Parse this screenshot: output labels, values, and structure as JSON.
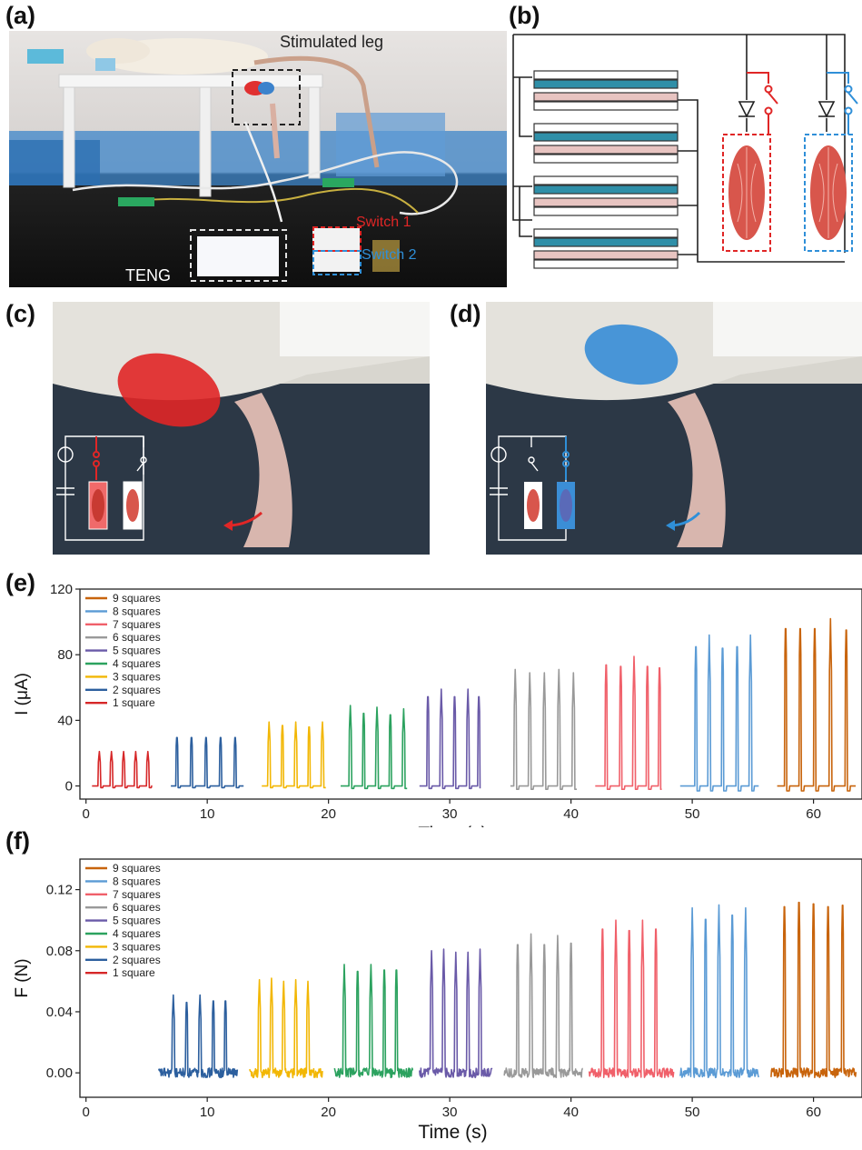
{
  "panels": {
    "a": {
      "label": "(a)",
      "stimulated_leg": "Stimulated leg",
      "switch1": "Switch 1",
      "switch2": "Switch 2",
      "teng": "TENG"
    },
    "b": {
      "label": "(b)"
    },
    "c": {
      "label": "(c)"
    },
    "d": {
      "label": "(d)"
    },
    "e": {
      "label": "(e)"
    },
    "f": {
      "label": "(f)"
    }
  },
  "colors": {
    "red_switch": "#e02626",
    "blue_switch": "#2f8fd8",
    "teng_dark": "#2f8fa8",
    "teng_light": "#e8c4c1",
    "muscle": "#d8564c"
  },
  "chart_data": [
    {
      "type": "line",
      "panel": "(e)",
      "xlabel": "Time (s)",
      "ylabel": "I (μA)",
      "xlim": [
        -0.5,
        64
      ],
      "ylim": [
        -8,
        120
      ],
      "xticks": [
        0,
        10,
        20,
        30,
        40,
        50,
        60
      ],
      "yticks": [
        0,
        40,
        80,
        120
      ],
      "legend_position": "top-left",
      "series": [
        {
          "name": "1 square",
          "color": "#d62728",
          "x_start": 0.5,
          "x_end": 5.5,
          "peaks_x": [
            1.1,
            2.1,
            3.1,
            4.1,
            5.1
          ],
          "peaks_y": [
            21,
            21,
            21,
            21,
            21
          ],
          "dip": -1
        },
        {
          "name": "2 squares",
          "color": "#2c5f9e",
          "x_start": 7.0,
          "x_end": 13.0,
          "peaks_x": [
            7.5,
            8.7,
            9.9,
            11.1,
            12.3
          ],
          "peaks_y": [
            32,
            32,
            32,
            32,
            32
          ],
          "dip": -1
        },
        {
          "name": "3 squares",
          "color": "#f2b705",
          "x_start": 14.5,
          "x_end": 19.8,
          "peaks_x": [
            15.1,
            16.2,
            17.3,
            18.4,
            19.5
          ],
          "peaks_y": [
            39,
            40,
            39,
            39,
            39
          ],
          "dip": -1
        },
        {
          "name": "4 squares",
          "color": "#2ca25f",
          "x_start": 21.0,
          "x_end": 26.5,
          "peaks_x": [
            21.8,
            22.9,
            24.0,
            25.1,
            26.2
          ],
          "peaks_y": [
            49,
            48,
            48,
            47,
            47
          ],
          "dip": -1.5
        },
        {
          "name": "5 squares",
          "color": "#6a5aa8",
          "x_start": 27.5,
          "x_end": 32.5,
          "peaks_x": [
            28.2,
            29.3,
            30.4,
            31.5,
            32.4
          ],
          "peaks_y": [
            59,
            59,
            59,
            59,
            59
          ],
          "dip": -1.5
        },
        {
          "name": "6 squares",
          "color": "#999999",
          "x_start": 35.0,
          "x_end": 40.5,
          "peaks_x": [
            35.4,
            36.6,
            37.8,
            39.0,
            40.2
          ],
          "peaks_y": [
            71,
            69,
            69,
            71,
            69
          ],
          "dip": -2
        },
        {
          "name": "7 squares",
          "color": "#f0606a",
          "x_start": 42.0,
          "x_end": 47.5,
          "peaks_x": [
            42.9,
            44.1,
            45.2,
            46.3,
            47.3
          ],
          "peaks_y": [
            80,
            79,
            79,
            79,
            78
          ],
          "dip": -2
        },
        {
          "name": "8 squares",
          "color": "#5b9bd5",
          "x_start": 49.0,
          "x_end": 55.5,
          "peaks_x": [
            50.3,
            51.4,
            52.5,
            53.7,
            54.8
          ],
          "peaks_y": [
            92,
            92,
            91,
            92,
            92
          ],
          "dip": -3
        },
        {
          "name": "9 squares",
          "color": "#c8640c",
          "x_start": 57.0,
          "x_end": 63.5,
          "peaks_x": [
            57.7,
            58.9,
            60.1,
            61.4,
            62.7
          ],
          "peaks_y": [
            104,
            104,
            104,
            102,
            103
          ],
          "dip": -3
        }
      ]
    },
    {
      "type": "line",
      "panel": "(f)",
      "xlabel": "Time (s)",
      "ylabel": "F (N)",
      "xlim": [
        -0.5,
        64
      ],
      "ylim": [
        -0.016,
        0.14
      ],
      "xticks": [
        0,
        10,
        20,
        30,
        40,
        50,
        60
      ],
      "yticks": [
        0.0,
        0.04,
        0.08,
        0.12
      ],
      "legend_position": "top-left",
      "series": [
        {
          "name": "1 square",
          "color": "#d62728",
          "x_start": null,
          "x_end": null,
          "peaks_x": [],
          "peaks_y": []
        },
        {
          "name": "2 squares",
          "color": "#2c5f9e",
          "x_start": 6.0,
          "x_end": 12.5,
          "peaks_x": [
            7.2,
            8.3,
            9.4,
            10.5,
            11.5
          ],
          "peaks_y": [
            0.051,
            0.05,
            0.051,
            0.051,
            0.051
          ]
        },
        {
          "name": "3 squares",
          "color": "#f2b705",
          "x_start": 13.5,
          "x_end": 19.5,
          "peaks_x": [
            14.3,
            15.3,
            16.3,
            17.3,
            18.3
          ],
          "peaks_y": [
            0.061,
            0.062,
            0.06,
            0.061,
            0.06
          ]
        },
        {
          "name": "4 squares",
          "color": "#2ca25f",
          "x_start": 20.5,
          "x_end": 27.0,
          "peaks_x": [
            21.3,
            22.4,
            23.5,
            24.6,
            25.6
          ],
          "peaks_y": [
            0.071,
            0.072,
            0.071,
            0.073,
            0.073
          ]
        },
        {
          "name": "5 squares",
          "color": "#6a5aa8",
          "x_start": 27.5,
          "x_end": 33.5,
          "peaks_x": [
            28.5,
            29.5,
            30.5,
            31.5,
            32.5
          ],
          "peaks_y": [
            0.08,
            0.081,
            0.079,
            0.079,
            0.081
          ]
        },
        {
          "name": "6 squares",
          "color": "#999999",
          "x_start": 34.5,
          "x_end": 41.0,
          "peaks_x": [
            35.6,
            36.7,
            37.8,
            38.9,
            40.0
          ],
          "peaks_y": [
            0.091,
            0.091,
            0.091,
            0.09,
            0.092
          ]
        },
        {
          "name": "7 squares",
          "color": "#f0606a",
          "x_start": 41.5,
          "x_end": 48.5,
          "peaks_x": [
            42.6,
            43.7,
            44.8,
            45.9,
            47.0
          ],
          "peaks_y": [
            0.102,
            0.1,
            0.101,
            0.1,
            0.102
          ]
        },
        {
          "name": "8 squares",
          "color": "#5b9bd5",
          "x_start": 49.0,
          "x_end": 55.5,
          "peaks_x": [
            50.0,
            51.1,
            52.2,
            53.3,
            54.4
          ],
          "peaks_y": [
            0.108,
            0.109,
            0.11,
            0.112,
            0.108
          ]
        },
        {
          "name": "9 squares",
          "color": "#c8640c",
          "x_start": 56.5,
          "x_end": 63.5,
          "peaks_x": [
            57.6,
            58.8,
            60.0,
            61.2,
            62.4
          ],
          "peaks_y": [
            0.118,
            0.121,
            0.12,
            0.118,
            0.119
          ]
        }
      ]
    }
  ]
}
